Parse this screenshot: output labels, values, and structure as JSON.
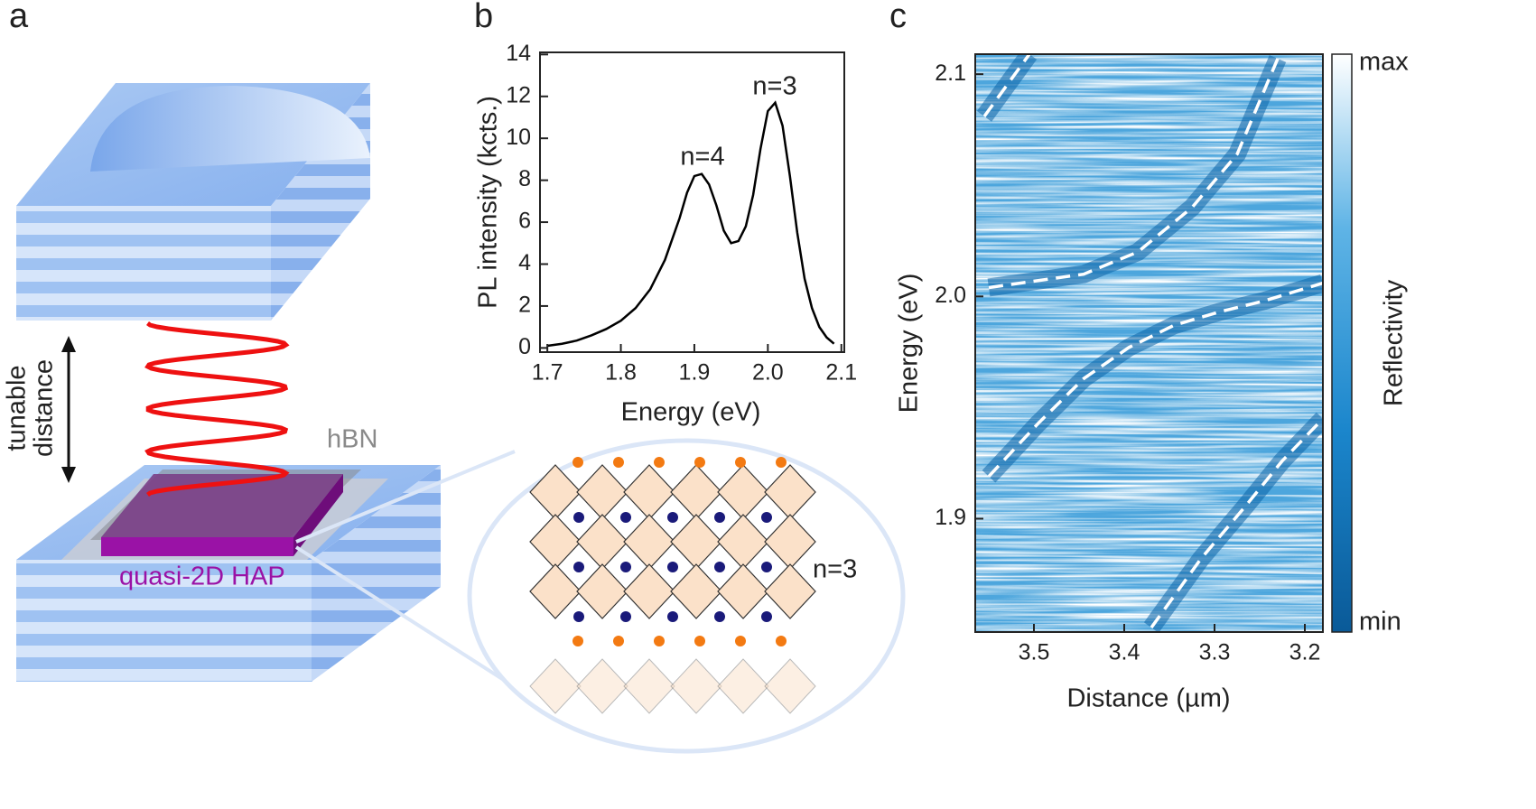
{
  "panel_labels": [
    "a",
    "b",
    "c"
  ],
  "diagram": {
    "distance_label": [
      "tunable",
      "distance"
    ],
    "hbn_label": "hBN",
    "sample_label": "quasi-2D HAP",
    "inset_label": "n=3"
  },
  "chart_data": [
    {
      "type": "line",
      "xlabel": "Energy (eV)",
      "ylabel": "PL intensity (kcts.)",
      "x": [
        1.7,
        1.72,
        1.74,
        1.76,
        1.78,
        1.8,
        1.82,
        1.84,
        1.86,
        1.88,
        1.89,
        1.9,
        1.91,
        1.92,
        1.93,
        1.94,
        1.95,
        1.96,
        1.97,
        1.98,
        1.99,
        2.0,
        2.01,
        2.02,
        2.03,
        2.04,
        2.05,
        2.06,
        2.07,
        2.08,
        2.09
      ],
      "values": [
        0.1,
        0.2,
        0.35,
        0.6,
        0.9,
        1.3,
        1.9,
        2.8,
        4.2,
        6.2,
        7.4,
        8.2,
        8.3,
        7.8,
        6.8,
        5.6,
        5.0,
        5.1,
        5.8,
        7.3,
        9.5,
        11.3,
        11.7,
        10.6,
        8.2,
        5.5,
        3.3,
        1.9,
        1.0,
        0.5,
        0.2
      ],
      "color": "#000000",
      "annotations": [
        {
          "text": "n=4"
        },
        {
          "text": "n=3"
        }
      ],
      "xlim": [
        1.69,
        2.104
      ],
      "ylim": [
        -0.2,
        14.1
      ],
      "xticks": [
        1.7,
        1.8,
        1.9,
        {
          "value": 2.0,
          "label": "2.0"
        },
        2.1
      ],
      "yticks": [
        0,
        2,
        4,
        6,
        8,
        10,
        12,
        14
      ]
    },
    {
      "type": "heatmap",
      "xlabel": "Distance (µm)",
      "ylabel": "Energy (eV)",
      "colorbar": {
        "label": "Reflectivity",
        "max_label": "max",
        "min_label": "min"
      },
      "line_style": "dashed",
      "series": [
        {
          "color": "#ffffff",
          "x": [
            3.55,
            3.495,
            3.445,
            3.395,
            3.345,
            3.295,
            3.245,
            3.18
          ],
          "values": [
            1.919,
            1.943,
            1.963,
            1.977,
            1.987,
            1.993,
            1.998,
            2.006
          ]
        },
        {
          "color": "#ffffff",
          "x": [
            3.55,
            3.445,
            3.385,
            3.325,
            3.275,
            3.23
          ],
          "values": [
            2.004,
            2.01,
            2.02,
            2.04,
            2.064,
            2.107
          ]
        },
        {
          "color": "#ffffff",
          "x": [
            3.555,
            3.505
          ],
          "values": [
            2.081,
            2.109
          ]
        },
        {
          "color": "#ffffff",
          "x": [
            3.37,
            3.315,
            3.265,
            3.225,
            3.18
          ],
          "values": [
            1.851,
            1.882,
            1.906,
            1.926,
            1.945
          ]
        }
      ],
      "xlim": [
        3.565,
        3.18
      ],
      "ylim": [
        1.849,
        2.109
      ],
      "xticks": [
        3.5,
        3.4,
        3.3,
        3.2
      ],
      "yticks": [
        1.9,
        {
          "value": 2.0,
          "label": "2.0"
        },
        2.1
      ]
    }
  ]
}
